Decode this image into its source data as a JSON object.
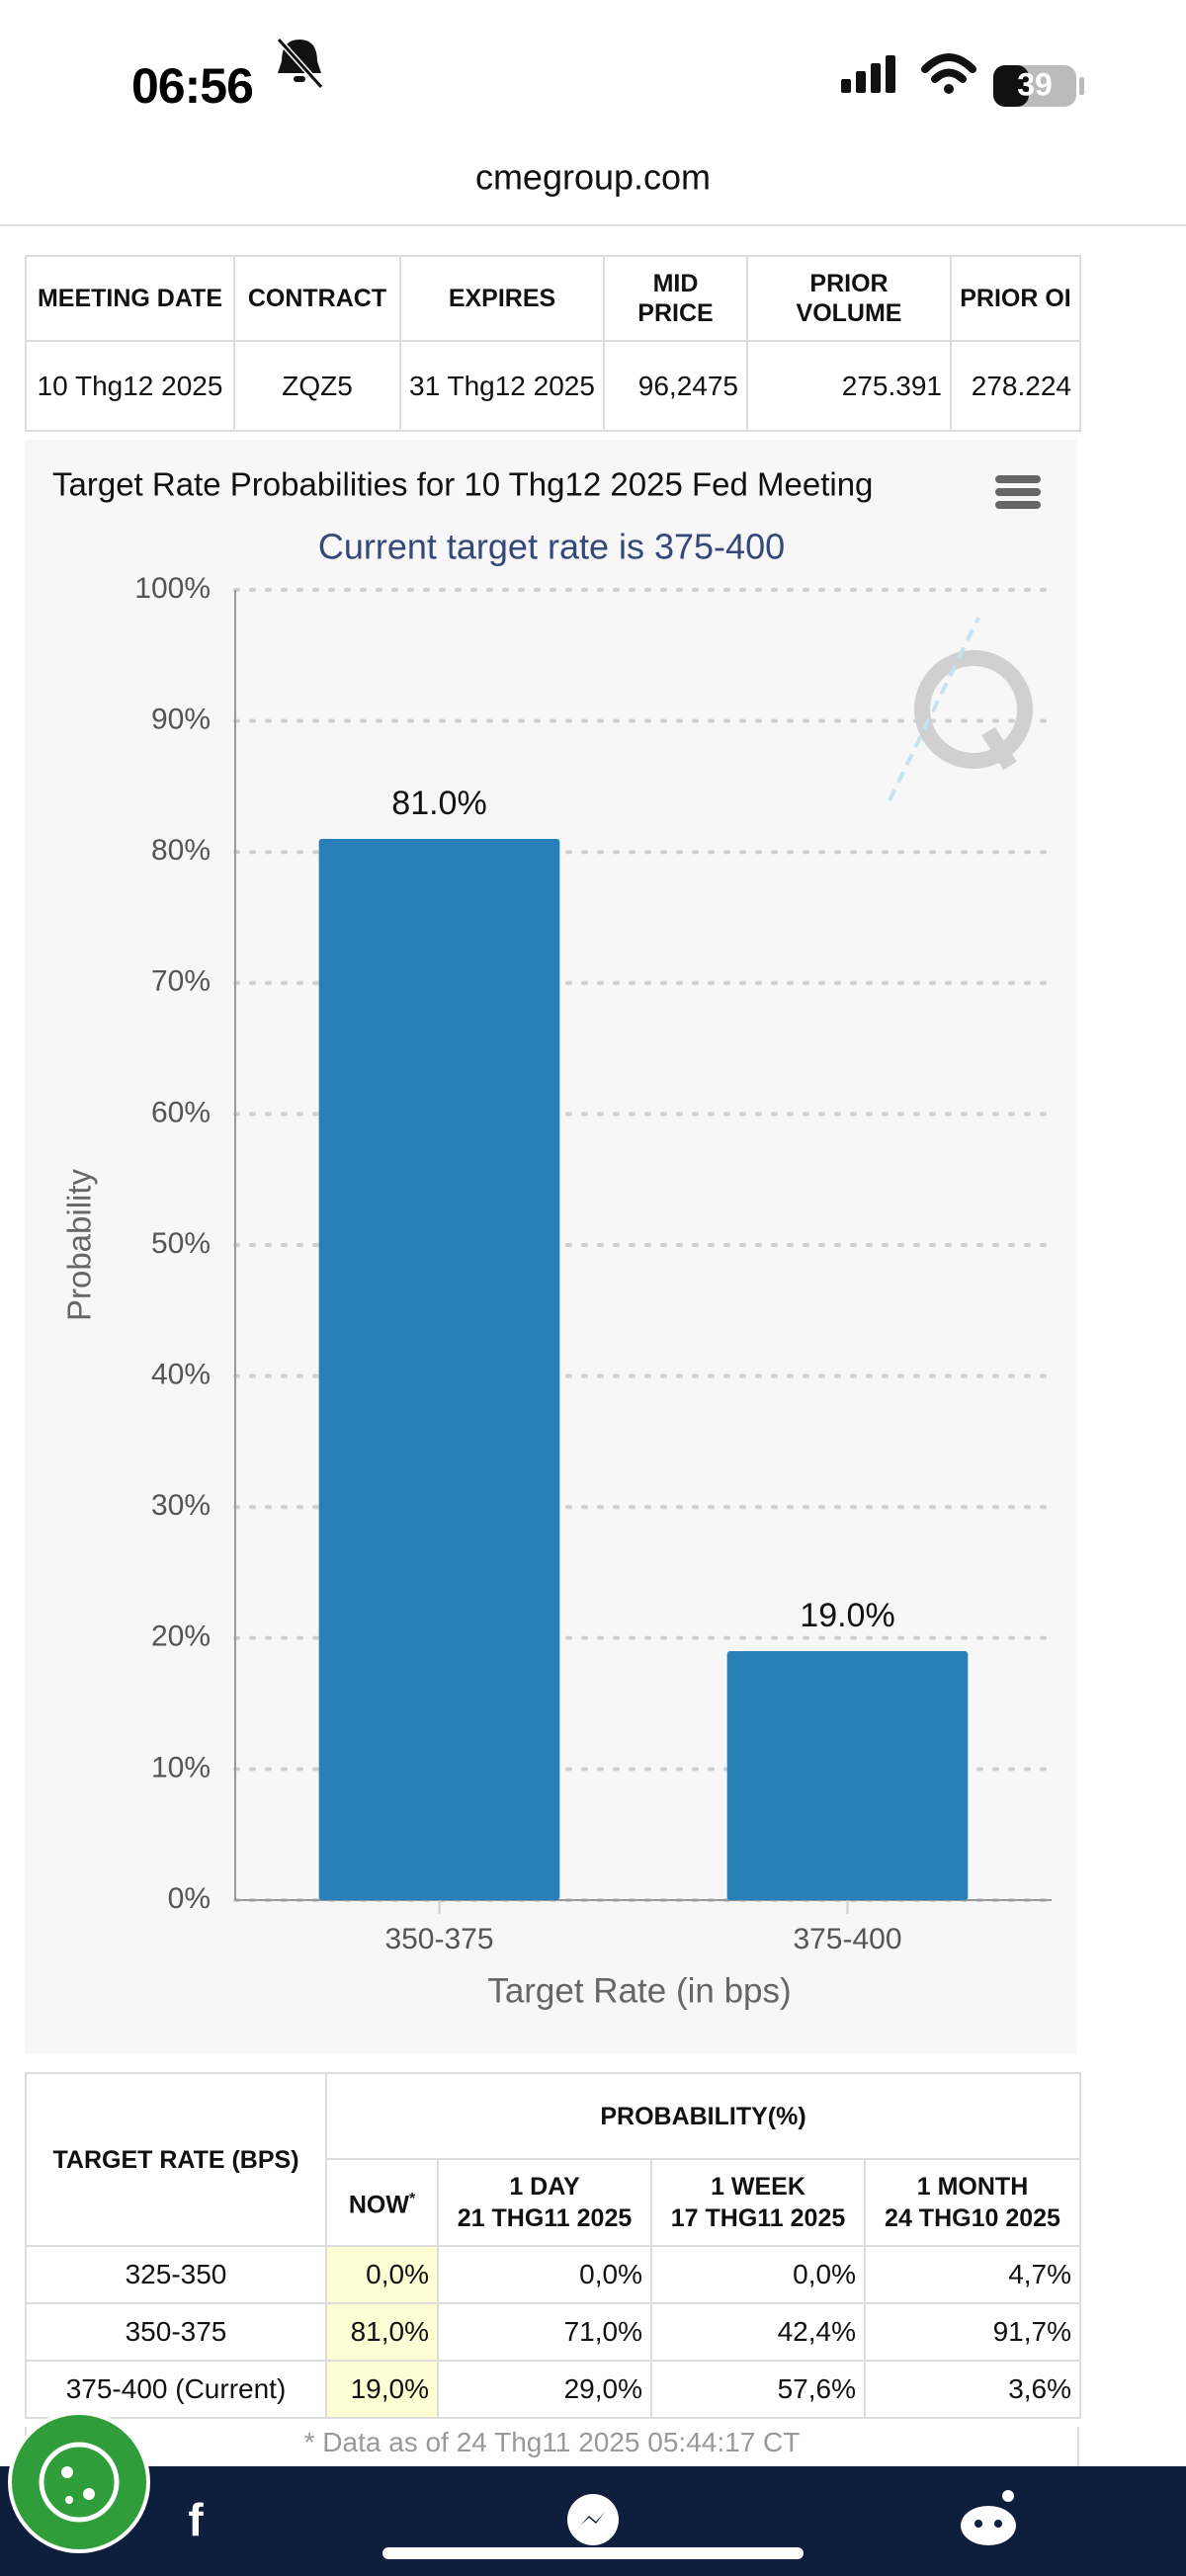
{
  "status_bar": {
    "time": "06:56",
    "battery": "39"
  },
  "url": "cmegroup.com",
  "top_table": {
    "headers": [
      "MEETING DATE",
      "CONTRACT",
      "EXPIRES",
      "MID PRICE",
      "PRIOR VOLUME",
      "PRIOR OI"
    ],
    "rows": [
      [
        "10 Thg12 2025",
        "ZQZ5",
        "31 Thg12 2025",
        "96,2475",
        "275.391",
        "278.224"
      ]
    ]
  },
  "chart_data": {
    "type": "bar",
    "title": "Target Rate Probabilities for 10 Thg12 2025 Fed Meeting",
    "subtitle": "Current target rate is 375-400",
    "x_label": "Target Rate (in bps)",
    "y_label": "Probability",
    "categories": [
      "350-375",
      "375-400"
    ],
    "values": [
      81.0,
      19.0
    ],
    "value_labels": [
      "81.0%",
      "19.0%"
    ],
    "color": "#2980b9",
    "ylim": [
      0,
      100
    ],
    "yticks": [
      {
        "value": 0,
        "label": "0%"
      },
      {
        "value": 10,
        "label": "10%"
      },
      {
        "value": 20,
        "label": "20%"
      },
      {
        "value": 30,
        "label": "30%"
      },
      {
        "value": 40,
        "label": "40%"
      },
      {
        "value": 50,
        "label": "50%"
      },
      {
        "value": 60,
        "label": "60%"
      },
      {
        "value": 70,
        "label": "70%"
      },
      {
        "value": 80,
        "label": "80%"
      },
      {
        "value": 90,
        "label": "90%"
      },
      {
        "value": 100,
        "label": "100%"
      }
    ],
    "grid": true
  },
  "probability_table": {
    "header": "TARGET RATE (BPS)",
    "group_header": "PROBABILITY(%)",
    "now": {
      "label": "NOW",
      "mark": "*"
    },
    "columns": [
      {
        "label": "1 DAY",
        "date": "21 THG11 2025"
      },
      {
        "label": "1 WEEK",
        "date": "17 THG11 2025"
      },
      {
        "label": "1 MONTH",
        "date": "24 THG10 2025"
      }
    ],
    "rows": [
      [
        "325-350",
        "0,0%",
        "0,0%",
        "0,0%",
        "4,7%"
      ],
      [
        "350-375",
        "81,0%",
        "71,0%",
        "42,4%",
        "91,7%"
      ],
      [
        "375-400 (Current)",
        "19,0%",
        "29,0%",
        "57,6%",
        "3,6%"
      ]
    ]
  },
  "footnote": "* Data as of 24 Thg11 2025 05:44:17 CT"
}
